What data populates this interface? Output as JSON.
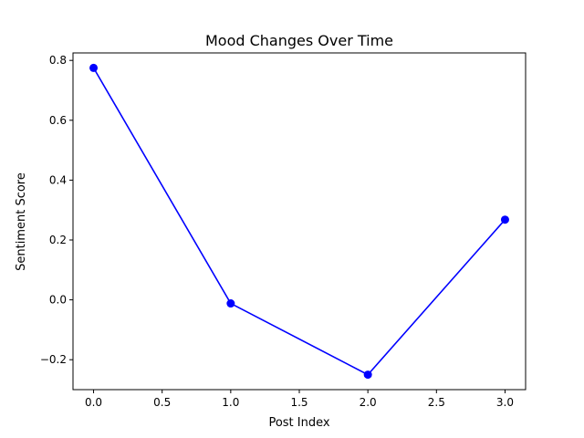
{
  "chart_data": {
    "type": "line",
    "title": "Mood Changes Over Time",
    "xlabel": "Post Index",
    "ylabel": "Sentiment Score",
    "x": [
      0,
      1,
      2,
      3
    ],
    "series": [
      {
        "values": [
          0.775,
          -0.012,
          -0.25,
          0.268
        ],
        "color": "#0000ff",
        "marker": "circle"
      }
    ],
    "xlim": [
      -0.15,
      3.15
    ],
    "ylim": [
      -0.3,
      0.825
    ],
    "xticks": [
      0.0,
      0.5,
      1.0,
      1.5,
      2.0,
      2.5,
      3.0
    ],
    "xtick_labels": [
      "0.0",
      "0.5",
      "1.0",
      "1.5",
      "2.0",
      "2.5",
      "3.0"
    ],
    "yticks": [
      -0.2,
      0.0,
      0.2,
      0.4,
      0.6,
      0.8
    ],
    "ytick_labels": [
      "−0.2",
      "0.0",
      "0.2",
      "0.4",
      "0.6",
      "0.8"
    ],
    "grid": false,
    "legend": "none"
  }
}
